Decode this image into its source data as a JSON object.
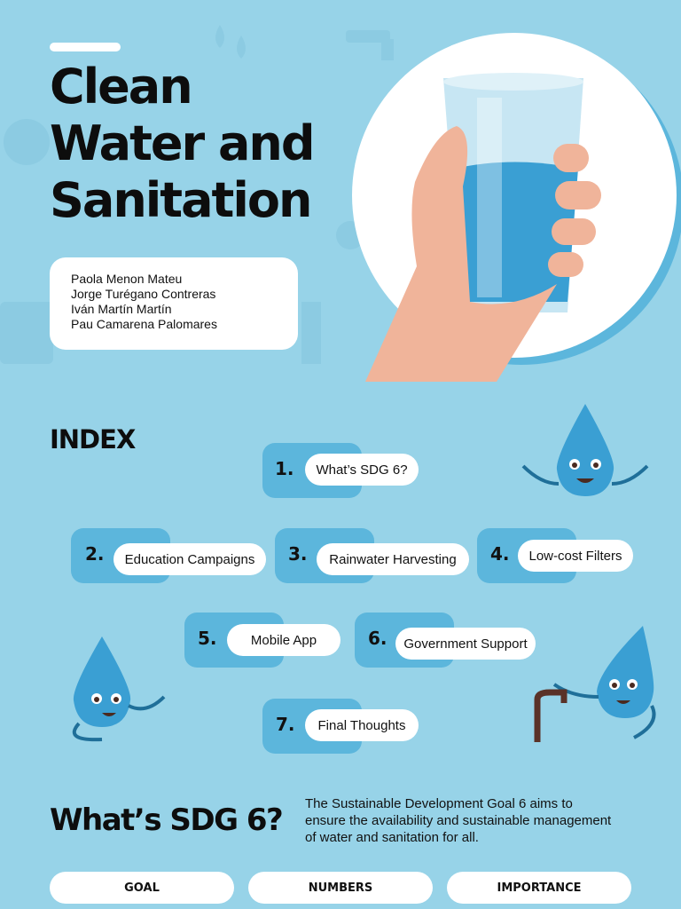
{
  "header": {
    "title_lines": [
      "Clean",
      "Water and",
      "Sanitation"
    ],
    "authors": [
      "Paola Menon Mateu",
      "Jorge Turégano Contreras",
      "Iván Martín Martín",
      "Pau Camarena Palomares"
    ]
  },
  "index": {
    "heading": "INDEX",
    "items": [
      {
        "number": "1.",
        "label": "What’s SDG 6?"
      },
      {
        "number": "2.",
        "label": "Education Campaigns"
      },
      {
        "number": "3.",
        "label": "Rainwater Harvesting"
      },
      {
        "number": "4.",
        "label": "Low-cost Filters"
      },
      {
        "number": "5.",
        "label": "Mobile App"
      },
      {
        "number": "6.",
        "label": "Government Support"
      },
      {
        "number": "7.",
        "label": "Final Thoughts"
      }
    ]
  },
  "section": {
    "heading": "What’s SDG 6?",
    "description": "The Sustainable Development Goal 6 aims to ensure the availability and sustainable management of water and sanitation for all.",
    "tabs": [
      "GOAL",
      "NUMBERS",
      "IMPORTANCE"
    ]
  }
}
